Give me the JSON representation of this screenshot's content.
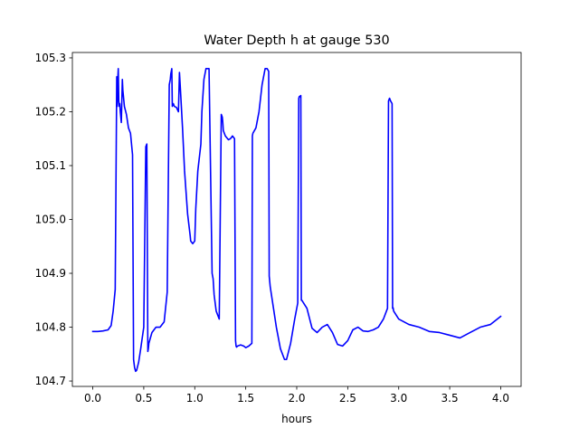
{
  "chart_data": {
    "type": "line",
    "title": "Water Depth h at gauge 530",
    "xlabel": "hours",
    "ylabel": "",
    "xlim": [
      -0.2,
      4.2
    ],
    "ylim": [
      104.69,
      105.31
    ],
    "xticks": [
      0.0,
      0.5,
      1.0,
      1.5,
      2.0,
      2.5,
      3.0,
      3.5,
      4.0
    ],
    "xtick_labels": [
      "0.0",
      "0.5",
      "1.0",
      "1.5",
      "2.0",
      "2.5",
      "3.0",
      "3.5",
      "4.0"
    ],
    "yticks": [
      104.7,
      104.8,
      104.9,
      105.0,
      105.1,
      105.2,
      105.3
    ],
    "ytick_labels": [
      "104.7",
      "104.8",
      "104.9",
      "105.0",
      "105.1",
      "105.2",
      "105.3"
    ],
    "grid": false,
    "series": [
      {
        "color": "#0000ff",
        "x": [
          0.0,
          0.05,
          0.1,
          0.15,
          0.18,
          0.2,
          0.22,
          0.235,
          0.24,
          0.245,
          0.25,
          0.255,
          0.26,
          0.265,
          0.27,
          0.28,
          0.29,
          0.295,
          0.3,
          0.31,
          0.33,
          0.35,
          0.37,
          0.39,
          0.4,
          0.41,
          0.42,
          0.43,
          0.45,
          0.47,
          0.5,
          0.52,
          0.53,
          0.54,
          0.545,
          0.55,
          0.58,
          0.62,
          0.66,
          0.7,
          0.73,
          0.75,
          0.76,
          0.765,
          0.775,
          0.78,
          0.79,
          0.8,
          0.82,
          0.84,
          0.85,
          0.86,
          0.88,
          0.9,
          0.93,
          0.955,
          0.96,
          0.98,
          1.0,
          1.01,
          1.03,
          1.06,
          1.07,
          1.09,
          1.11,
          1.14,
          1.17,
          1.18,
          1.185,
          1.19,
          1.21,
          1.24,
          1.26,
          1.27,
          1.275,
          1.28,
          1.3,
          1.33,
          1.35,
          1.37,
          1.39,
          1.4,
          1.405,
          1.41,
          1.42,
          1.45,
          1.48,
          1.5,
          1.53,
          1.56,
          1.565,
          1.57,
          1.6,
          1.63,
          1.66,
          1.69,
          1.71,
          1.725,
          1.73,
          1.735,
          1.74,
          1.76,
          1.8,
          1.84,
          1.88,
          1.9,
          1.94,
          1.98,
          2.01,
          2.02,
          2.025,
          2.04,
          2.045,
          2.05,
          2.1,
          2.15,
          2.2,
          2.25,
          2.3,
          2.35,
          2.4,
          2.45,
          2.5,
          2.55,
          2.6,
          2.65,
          2.7,
          2.75,
          2.8,
          2.85,
          2.89,
          2.9,
          2.91,
          2.92,
          2.935,
          2.94,
          2.945,
          2.95,
          3.0,
          3.1,
          3.2,
          3.3,
          3.4,
          3.5,
          3.6,
          3.7,
          3.8,
          3.9,
          4.0
        ],
        "y": [
          104.792,
          104.792,
          104.793,
          104.795,
          104.803,
          104.83,
          104.87,
          105.265,
          105.21,
          105.26,
          105.28,
          105.22,
          105.21,
          105.215,
          105.2,
          105.18,
          105.26,
          105.24,
          105.23,
          105.21,
          105.195,
          105.17,
          105.16,
          105.12,
          104.74,
          104.725,
          104.718,
          104.72,
          104.735,
          104.76,
          104.8,
          105.135,
          105.14,
          104.755,
          104.76,
          104.77,
          104.79,
          104.8,
          104.8,
          104.81,
          104.865,
          105.25,
          105.26,
          105.27,
          105.28,
          105.21,
          105.215,
          105.21,
          105.208,
          105.2,
          105.273,
          105.24,
          105.17,
          105.09,
          105.01,
          104.97,
          104.96,
          104.955,
          104.96,
          105.02,
          105.09,
          105.14,
          105.2,
          105.26,
          105.28,
          105.28,
          104.9,
          104.89,
          104.875,
          104.86,
          104.83,
          104.815,
          105.195,
          105.19,
          105.18,
          105.165,
          105.155,
          105.148,
          105.15,
          105.155,
          105.15,
          104.775,
          104.765,
          104.763,
          104.765,
          104.767,
          104.765,
          104.762,
          104.765,
          104.77,
          105.155,
          105.16,
          105.17,
          105.2,
          105.25,
          105.28,
          105.28,
          105.275,
          104.895,
          104.885,
          104.875,
          104.85,
          104.8,
          104.76,
          104.74,
          104.74,
          104.77,
          104.815,
          104.845,
          105.225,
          105.228,
          105.23,
          104.85,
          104.85,
          104.835,
          104.798,
          104.79,
          104.8,
          104.805,
          104.79,
          104.768,
          104.765,
          104.775,
          104.795,
          104.8,
          104.793,
          104.792,
          104.795,
          104.8,
          104.815,
          104.835,
          105.22,
          105.225,
          105.22,
          105.215,
          104.835,
          104.836,
          104.83,
          104.815,
          104.805,
          104.8,
          104.792,
          104.79,
          104.785,
          104.78,
          104.79,
          104.8,
          104.805,
          104.82
        ]
      }
    ]
  }
}
